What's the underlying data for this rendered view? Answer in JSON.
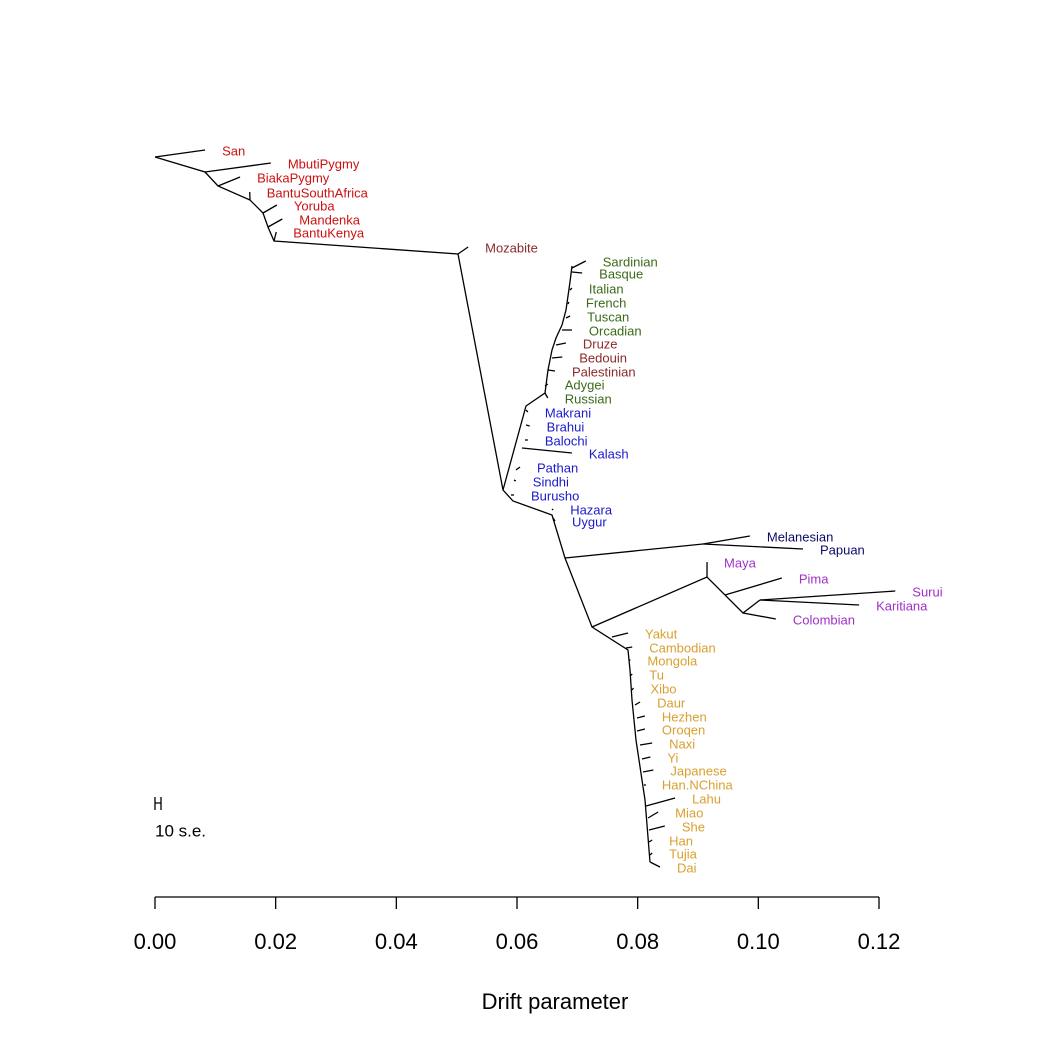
{
  "chart_data": {
    "type": "tree",
    "xlabel": "Drift parameter",
    "scale_label": "10 s.e.",
    "xlim": [
      0,
      0.12
    ],
    "xticks": [
      {
        "value": 0,
        "label": "0.00"
      },
      0.02,
      0.04,
      0.06,
      0.08,
      {
        "value": 0.1,
        "label": "0.10"
      },
      0.12
    ],
    "leaves": [
      {
        "name": "San",
        "color": "#cc1111",
        "value": 0.0083
      },
      {
        "name": "MbutiPygmy",
        "color": "#cc1111",
        "value": 0.0192
      },
      {
        "name": "BiakaPygmy",
        "color": "#cc1111",
        "value": 0.0141
      },
      {
        "name": "BantuSouthAfrica",
        "color": "#cc1111",
        "value": 0.0157
      },
      {
        "name": "Yoruba",
        "color": "#cc1111",
        "value": 0.0202
      },
      {
        "name": "Mandenka",
        "color": "#cc1111",
        "value": 0.0211
      },
      {
        "name": "BantuKenya",
        "color": "#cc1111",
        "value": 0.0201
      },
      {
        "name": "Mozabite",
        "color": "#8b2a2a",
        "value": 0.0519
      },
      {
        "name": "Sardinian",
        "color": "#3a6b1a",
        "value": 0.0714
      },
      {
        "name": "Basque",
        "color": "#3a6b1a",
        "value": 0.0708
      },
      {
        "name": "Italian",
        "color": "#3a6b1a",
        "value": 0.0691
      },
      {
        "name": "French",
        "color": "#3a6b1a",
        "value": 0.0686
      },
      {
        "name": "Tuscan",
        "color": "#3a6b1a",
        "value": 0.0688
      },
      {
        "name": "Orcadian",
        "color": "#3a6b1a",
        "value": 0.0691
      },
      {
        "name": "Druze",
        "color": "#8b2a2a",
        "value": 0.0681
      },
      {
        "name": "Bedouin",
        "color": "#8b2a2a",
        "value": 0.0675
      },
      {
        "name": "Palestinian",
        "color": "#8b2a2a",
        "value": 0.0663
      },
      {
        "name": "Adygei",
        "color": "#3a6b1a",
        "value": 0.0651
      },
      {
        "name": "Russian",
        "color": "#3a6b1a",
        "value": 0.0651
      },
      {
        "name": "Makrani",
        "color": "#1a1acc",
        "value": 0.0618
      },
      {
        "name": "Brahui",
        "color": "#1a1acc",
        "value": 0.0621
      },
      {
        "name": "Balochi",
        "color": "#1a1acc",
        "value": 0.0618
      },
      {
        "name": "Kalash",
        "color": "#1a1acc",
        "value": 0.0691
      },
      {
        "name": "Pathan",
        "color": "#1a1acc",
        "value": 0.0605
      },
      {
        "name": "Sindhi",
        "color": "#1a1acc",
        "value": 0.0598
      },
      {
        "name": "Burusho",
        "color": "#1a1acc",
        "value": 0.0595
      },
      {
        "name": "Hazara",
        "color": "#1a1acc",
        "value": 0.066
      },
      {
        "name": "Uygur",
        "color": "#1a1acc",
        "value": 0.0663
      },
      {
        "name": "Melanesian",
        "color": "#0a0a6a",
        "value": 0.0986
      },
      {
        "name": "Papuan",
        "color": "#0a0a6a",
        "value": 0.1074
      },
      {
        "name": "Maya",
        "color": "#a030c8",
        "value": 0.0915
      },
      {
        "name": "Pima",
        "color": "#a030c8",
        "value": 0.1039
      },
      {
        "name": "Surui",
        "color": "#a030c8",
        "value": 0.1227
      },
      {
        "name": "Karitiana",
        "color": "#a030c8",
        "value": 0.1167
      },
      {
        "name": "Colombian",
        "color": "#a030c8",
        "value": 0.1029
      },
      {
        "name": "Yakut",
        "color": "#d9a030",
        "value": 0.0784
      },
      {
        "name": "Cambodian",
        "color": "#d9a030",
        "value": 0.0791
      },
      {
        "name": "Mongola",
        "color": "#d9a030",
        "value": 0.0788
      },
      {
        "name": "Tu",
        "color": "#d9a030",
        "value": 0.0791
      },
      {
        "name": "Xibo",
        "color": "#d9a030",
        "value": 0.0793
      },
      {
        "name": "Daur",
        "color": "#d9a030",
        "value": 0.0804
      },
      {
        "name": "Hezhen",
        "color": "#d9a030",
        "value": 0.0812
      },
      {
        "name": "Oroqen",
        "color": "#d9a030",
        "value": 0.0812
      },
      {
        "name": "Naxi",
        "color": "#d9a030",
        "value": 0.0824
      },
      {
        "name": "Yi",
        "color": "#d9a030",
        "value": 0.0821
      },
      {
        "name": "Japanese",
        "color": "#d9a030",
        "value": 0.0826
      },
      {
        "name": "Han.NChina",
        "color": "#d9a030",
        "value": 0.0812
      },
      {
        "name": "Lahu",
        "color": "#d9a030",
        "value": 0.0862
      },
      {
        "name": "Miao",
        "color": "#d9a030",
        "value": 0.0834
      },
      {
        "name": "She",
        "color": "#d9a030",
        "value": 0.0845
      },
      {
        "name": "Han",
        "color": "#d9a030",
        "value": 0.0824
      },
      {
        "name": "Tujia",
        "color": "#d9a030",
        "value": 0.0824
      },
      {
        "name": "Dai",
        "color": "#d9a030",
        "value": 0.0837
      }
    ]
  }
}
